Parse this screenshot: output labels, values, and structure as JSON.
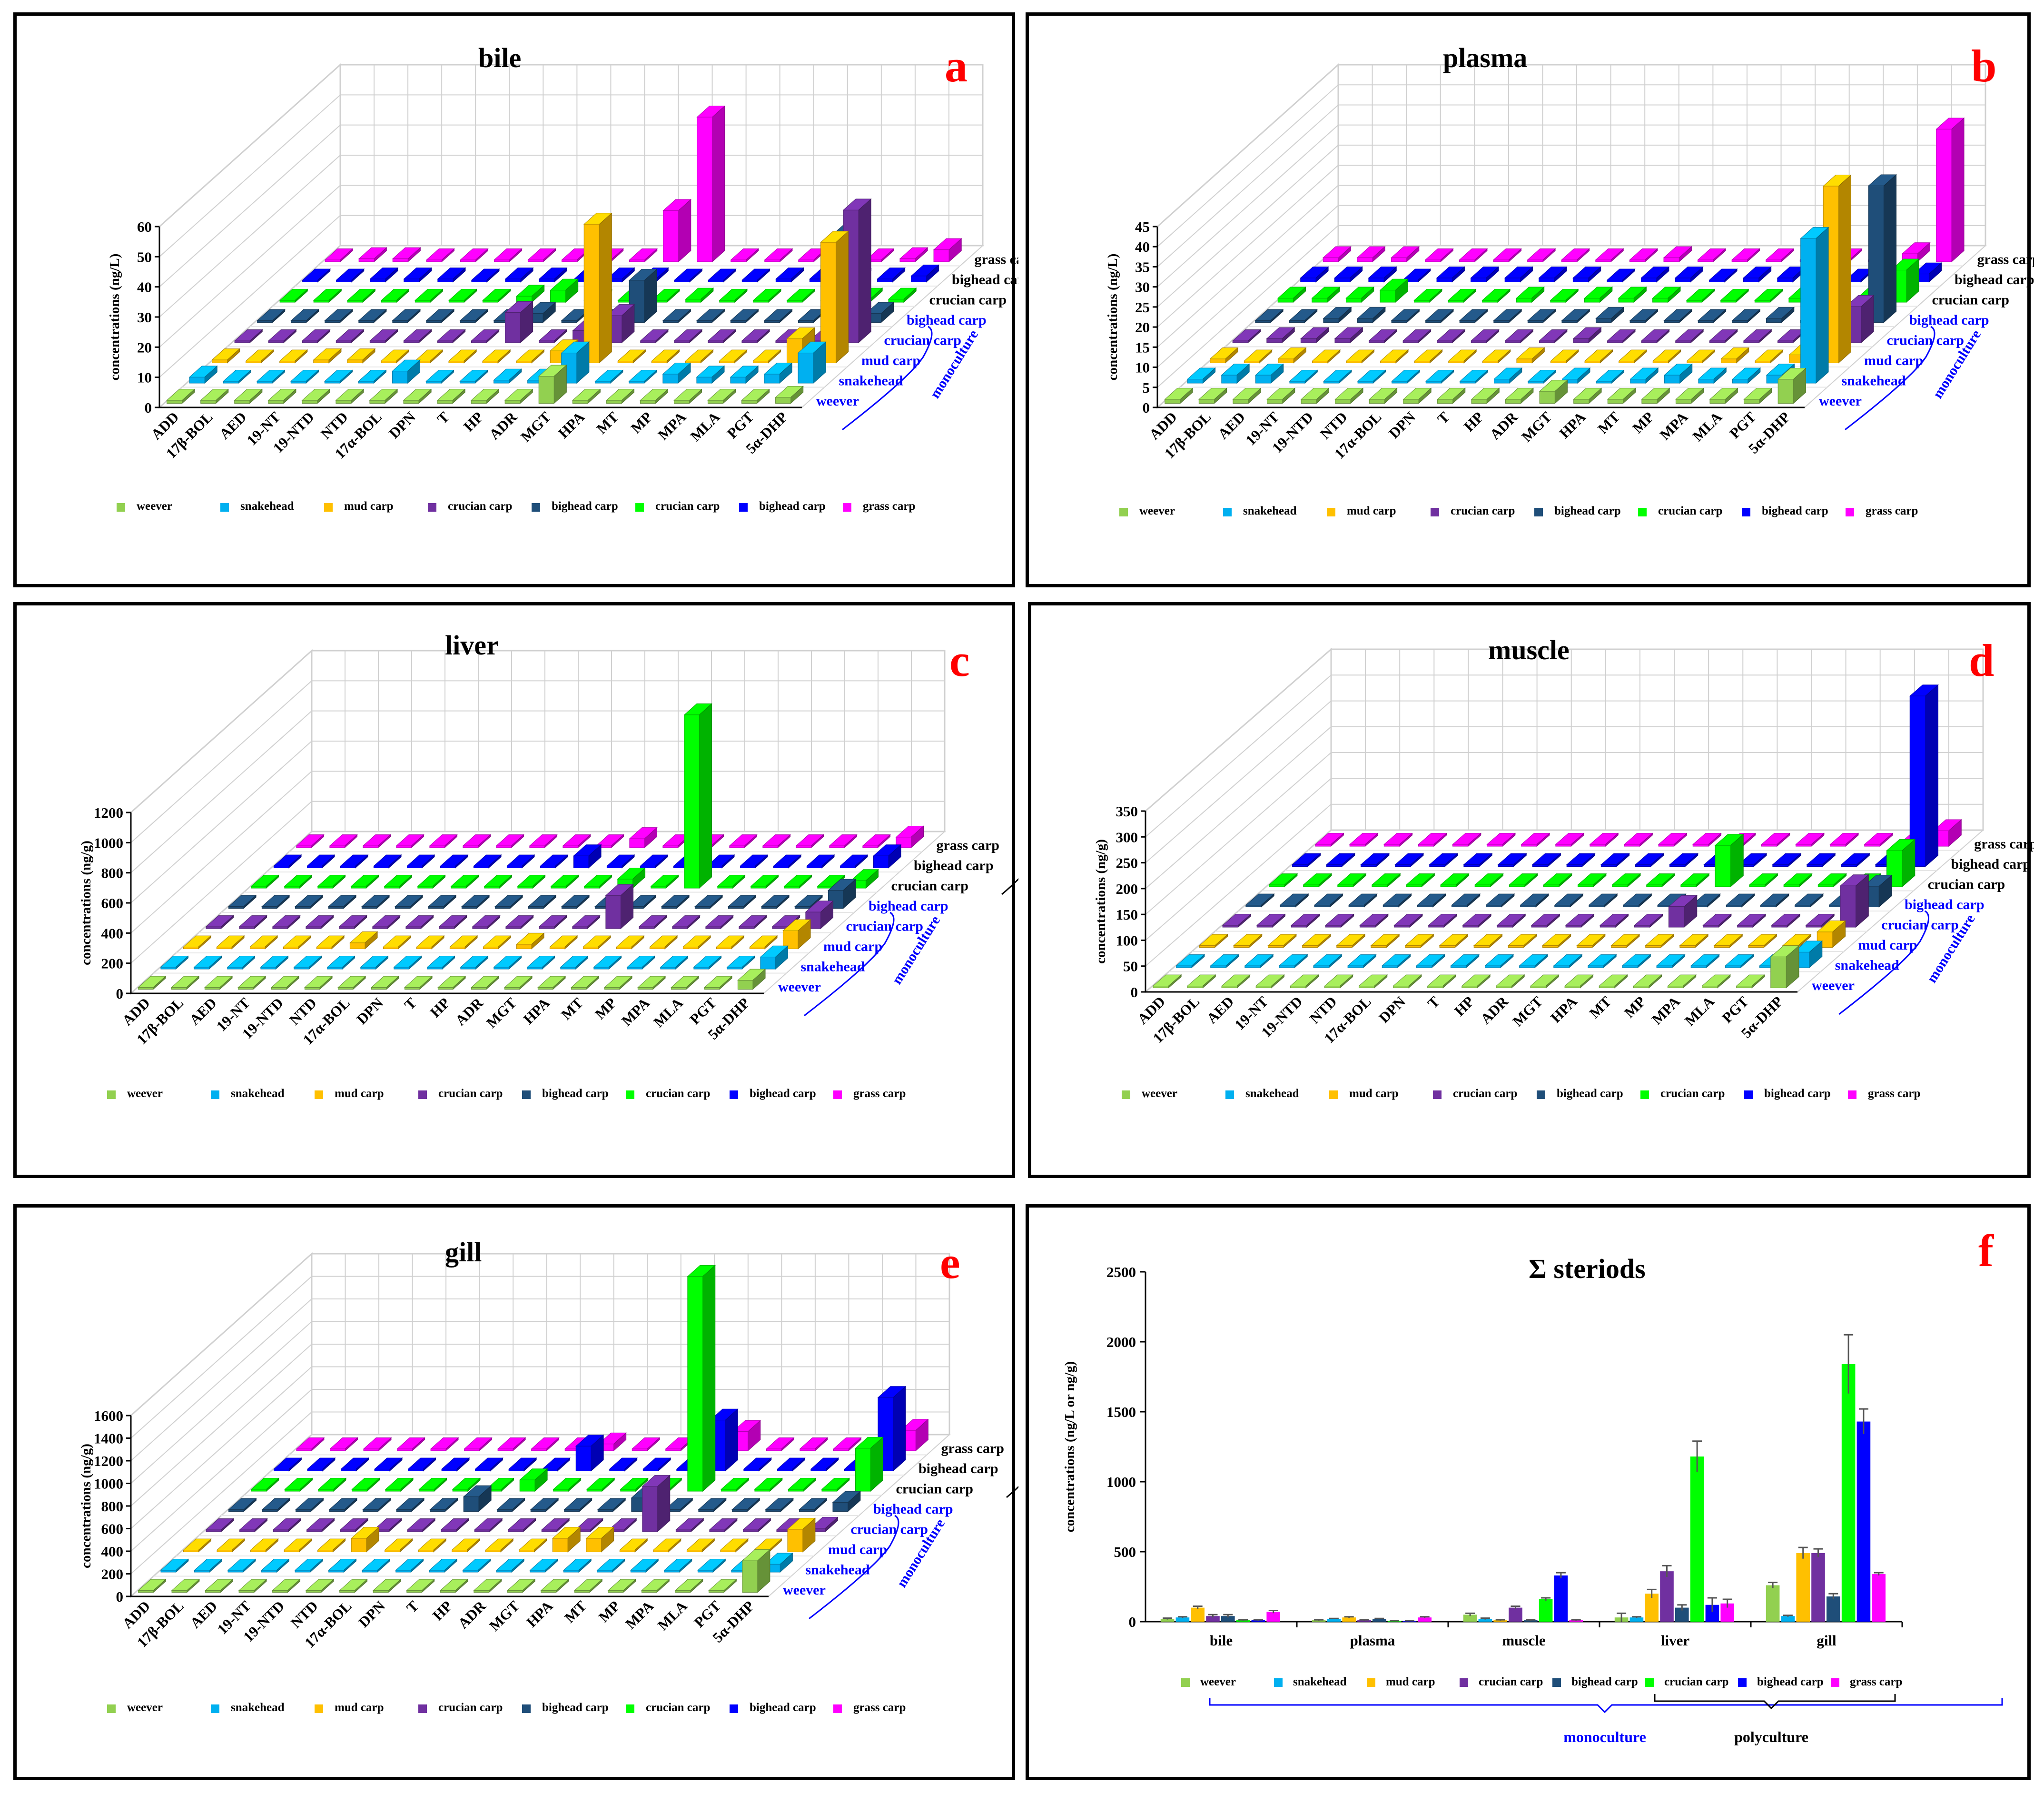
{
  "categories": [
    "ADD",
    "17β-BOL",
    "AED",
    "19-NT",
    "19-NTD",
    "NTD",
    "17α-BOL",
    "DPN",
    "T",
    "HP",
    "ADR",
    "MGT",
    "HPA",
    "MT",
    "MP",
    "MPA",
    "MLA",
    "PGT",
    "5α-DHP"
  ],
  "series": [
    {
      "name": "weever",
      "color": "#92d050"
    },
    {
      "name": "snakehead",
      "color": "#00b0f0"
    },
    {
      "name": "mud carp",
      "color": "#ffc000"
    },
    {
      "name": "crucian carp",
      "color": "#7030a0"
    },
    {
      "name": "bighead carp",
      "color": "#1f4e79"
    },
    {
      "name": "crucian carp",
      "color": "#00ff00"
    },
    {
      "name": "bighead carp",
      "color": "#0000ff"
    },
    {
      "name": "grass carp",
      "color": "#ff00ff"
    }
  ],
  "depth_labels": [
    "weever",
    "snakehead",
    "mud carp",
    "crucian carp",
    "bighead carp",
    "crucian carp",
    "bighead carp",
    "grass carp"
  ],
  "group_labels": {
    "monoculture": "monoculture",
    "polyculture": "polyculture"
  },
  "colors": {
    "letter": "#ff0000",
    "blue_text": "#0000ff",
    "frame": "#000000",
    "grid": "#d0d0d0"
  },
  "chart_data": [
    {
      "type": "bar3d",
      "letter": "a",
      "title": "bile",
      "ylabel": "concentrations (ng/L)",
      "ylim": [
        0,
        60
      ],
      "yticks": [
        0,
        10,
        20,
        30,
        40,
        50,
        60
      ],
      "values": [
        [
          1,
          1,
          1,
          1,
          1,
          1,
          1,
          1,
          1,
          1,
          1,
          9,
          1,
          1,
          1,
          1,
          1,
          1,
          2
        ],
        [
          2,
          0,
          0,
          0,
          0,
          0,
          4,
          0,
          0,
          1,
          1,
          10,
          0,
          0,
          3,
          2,
          2,
          3,
          10
        ],
        [
          1,
          0,
          0,
          1,
          1,
          0,
          0,
          0,
          0,
          0,
          4,
          46,
          0,
          0,
          0,
          0,
          0,
          8,
          40
        ],
        [
          0,
          0,
          0,
          0,
          0,
          0,
          0,
          0,
          10,
          0,
          4,
          9,
          0,
          0,
          0,
          0,
          0,
          0,
          44
        ],
        [
          0,
          0,
          0,
          0,
          0,
          0,
          0,
          0,
          3,
          0,
          0,
          14,
          0,
          0,
          0,
          0,
          0,
          29,
          3
        ],
        [
          0,
          0,
          0,
          0,
          0,
          0,
          0,
          2,
          4,
          0,
          0,
          0,
          1,
          0,
          0,
          0,
          0,
          1,
          1
        ],
        [
          0,
          0,
          1,
          1,
          1,
          0,
          1,
          1,
          0,
          1,
          1,
          0,
          0,
          0,
          1,
          1,
          0,
          1,
          2
        ],
        [
          0,
          1,
          1,
          0,
          0,
          0,
          0,
          0,
          0,
          0,
          17,
          48,
          0,
          0,
          0,
          0,
          0,
          1,
          4
        ]
      ]
    },
    {
      "type": "bar3d",
      "letter": "b",
      "title": "plasma",
      "ylabel": "concentrations (ng/L)",
      "ylim": [
        0,
        45
      ],
      "yticks": [
        0,
        5,
        10,
        15,
        20,
        25,
        30,
        35,
        40,
        45
      ],
      "values": [
        [
          1,
          1,
          1,
          1,
          1,
          1,
          1,
          1,
          1,
          1,
          1,
          3,
          1,
          1,
          1,
          1,
          1,
          1,
          6
        ],
        [
          1,
          2,
          2,
          0,
          0,
          0,
          0,
          0,
          0,
          1,
          0,
          1,
          0,
          1,
          2,
          1,
          1,
          2,
          36
        ],
        [
          1,
          0,
          1,
          0,
          0,
          0,
          0,
          0,
          0,
          1,
          0,
          0,
          0,
          0,
          0,
          1,
          0,
          2,
          44
        ],
        [
          0,
          1,
          1,
          1,
          0,
          0,
          0,
          0,
          0,
          0,
          1,
          0,
          0,
          0,
          0,
          0,
          0,
          1,
          9
        ],
        [
          0,
          0,
          1,
          1,
          0,
          0,
          0,
          0,
          0,
          0,
          1,
          0,
          0,
          0,
          0,
          1,
          0,
          0,
          34
        ],
        [
          1,
          1,
          1,
          3,
          0,
          0,
          0,
          1,
          0,
          1,
          1,
          1,
          0,
          0,
          0,
          1,
          1,
          1,
          8
        ],
        [
          1,
          1,
          1,
          0,
          1,
          1,
          1,
          1,
          1,
          0,
          1,
          1,
          0,
          1,
          1,
          1,
          0,
          1,
          2
        ],
        [
          1,
          1,
          1,
          0,
          0,
          0,
          0,
          0,
          0,
          0,
          1,
          0,
          0,
          0,
          0,
          0,
          0,
          2,
          33
        ]
      ]
    },
    {
      "type": "bar3d",
      "letter": "c",
      "title": "liver",
      "ylabel": "concentrations (ng/g)",
      "ylim": [
        0,
        1200
      ],
      "yticks": [
        0,
        200,
        400,
        600,
        800,
        1000,
        1200
      ],
      "values": [
        [
          5,
          0,
          5,
          5,
          5,
          0,
          0,
          5,
          0,
          0,
          0,
          5,
          5,
          0,
          5,
          5,
          5,
          5,
          60
        ],
        [
          0,
          5,
          5,
          0,
          0,
          0,
          0,
          0,
          5,
          0,
          0,
          0,
          0,
          0,
          0,
          0,
          5,
          5,
          80
        ],
        [
          5,
          5,
          0,
          0,
          5,
          40,
          0,
          0,
          5,
          0,
          30,
          0,
          0,
          0,
          5,
          0,
          5,
          5,
          120
        ],
        [
          0,
          5,
          0,
          0,
          5,
          0,
          5,
          5,
          0,
          0,
          0,
          0,
          220,
          0,
          0,
          5,
          0,
          0,
          110
        ],
        [
          0,
          5,
          0,
          0,
          5,
          0,
          0,
          5,
          0,
          0,
          0,
          0,
          0,
          0,
          0,
          0,
          0,
          5,
          120
        ],
        [
          0,
          5,
          0,
          0,
          0,
          0,
          0,
          0,
          5,
          0,
          5,
          60,
          0,
          1150,
          5,
          0,
          0,
          5,
          50
        ],
        [
          0,
          5,
          5,
          0,
          0,
          0,
          5,
          0,
          0,
          80,
          0,
          0,
          0,
          0,
          0,
          5,
          0,
          5,
          80
        ],
        [
          0,
          5,
          5,
          0,
          0,
          0,
          0,
          5,
          0,
          5,
          60,
          0,
          0,
          5,
          5,
          0,
          5,
          0,
          70
        ]
      ]
    },
    {
      "type": "bar3d",
      "letter": "d",
      "title": "muscle",
      "ylabel": "concentrations (ng/g)",
      "ylim": [
        0,
        350
      ],
      "yticks": [
        0,
        50,
        100,
        150,
        200,
        250,
        300,
        350
      ],
      "values": [
        [
          2,
          2,
          2,
          2,
          2,
          2,
          2,
          2,
          2,
          2,
          2,
          2,
          2,
          2,
          2,
          2,
          2,
          2,
          60
        ],
        [
          2,
          0,
          2,
          0,
          0,
          0,
          0,
          0,
          0,
          2,
          0,
          0,
          0,
          0,
          2,
          2,
          2,
          2,
          30
        ],
        [
          0,
          2,
          2,
          0,
          0,
          0,
          0,
          0,
          0,
          0,
          0,
          0,
          0,
          0,
          0,
          2,
          0,
          2,
          30
        ],
        [
          0,
          2,
          0,
          2,
          0,
          0,
          0,
          2,
          0,
          0,
          2,
          0,
          0,
          40,
          2,
          2,
          0,
          2,
          80
        ],
        [
          2,
          0,
          0,
          0,
          0,
          0,
          0,
          0,
          0,
          0,
          0,
          0,
          0,
          0,
          0,
          0,
          0,
          2,
          40
        ],
        [
          2,
          2,
          2,
          2,
          2,
          2,
          2,
          2,
          2,
          2,
          2,
          2,
          0,
          80,
          2,
          2,
          2,
          2,
          70
        ],
        [
          2,
          2,
          2,
          2,
          2,
          2,
          2,
          2,
          2,
          2,
          2,
          2,
          2,
          0,
          2,
          2,
          2,
          2,
          330
        ],
        [
          2,
          0,
          0,
          0,
          0,
          0,
          0,
          0,
          0,
          0,
          0,
          0,
          0,
          0,
          0,
          0,
          0,
          2,
          30
        ]
      ]
    },
    {
      "type": "bar3d",
      "letter": "e",
      "title": "gill",
      "ylabel": "concentrations (ng/g)",
      "ylim": [
        0,
        1600
      ],
      "yticks": [
        0,
        200,
        400,
        600,
        800,
        1000,
        1200,
        1400,
        1600
      ],
      "values": [
        [
          5,
          5,
          0,
          5,
          5,
          5,
          0,
          0,
          0,
          0,
          5,
          0,
          5,
          0,
          5,
          0,
          5,
          5,
          280
        ],
        [
          0,
          5,
          5,
          5,
          5,
          5,
          0,
          0,
          0,
          0,
          0,
          0,
          5,
          0,
          0,
          0,
          0,
          5,
          70
        ],
        [
          5,
          0,
          0,
          0,
          5,
          120,
          0,
          0,
          0,
          0,
          0,
          120,
          120,
          0,
          0,
          5,
          0,
          0,
          200
        ],
        [
          0,
          5,
          0,
          0,
          0,
          0,
          5,
          0,
          0,
          0,
          5,
          0,
          5,
          400,
          5,
          0,
          5,
          5,
          30
        ],
        [
          0,
          5,
          5,
          0,
          5,
          0,
          5,
          130,
          0,
          0,
          0,
          5,
          120,
          5,
          5,
          0,
          5,
          0,
          80
        ],
        [
          5,
          5,
          0,
          0,
          5,
          0,
          5,
          5,
          100,
          0,
          0,
          5,
          5,
          1900,
          5,
          0,
          0,
          5,
          380
        ],
        [
          5,
          5,
          5,
          5,
          5,
          5,
          5,
          0,
          0,
          220,
          0,
          0,
          0,
          450,
          5,
          5,
          5,
          5,
          650
        ],
        [
          5,
          0,
          0,
          0,
          5,
          5,
          0,
          5,
          5,
          60,
          0,
          0,
          0,
          170,
          0,
          0,
          5,
          5,
          180
        ]
      ]
    },
    {
      "type": "bar",
      "letter": "f",
      "title": "Σ steriods",
      "ylabel": "concentrations (ng/L or ng/g)",
      "ylim": [
        0,
        2500
      ],
      "yticks": [
        0,
        500,
        1000,
        1500,
        2000,
        2500
      ],
      "groups": [
        "bile",
        "plasma",
        "muscle",
        "liver",
        "gill"
      ],
      "values": [
        [
          20,
          10,
          50,
          30,
          260
        ],
        [
          30,
          20,
          20,
          30,
          40
        ],
        [
          100,
          30,
          10,
          200,
          490
        ],
        [
          40,
          10,
          100,
          360,
          490
        ],
        [
          40,
          20,
          10,
          100,
          180
        ],
        [
          10,
          5,
          160,
          1180,
          1840
        ],
        [
          10,
          5,
          330,
          120,
          1430
        ],
        [
          70,
          30,
          10,
          130,
          340
        ]
      ],
      "errors": [
        [
          5,
          3,
          10,
          30,
          20
        ],
        [
          5,
          3,
          5,
          5,
          5
        ],
        [
          10,
          5,
          3,
          30,
          40
        ],
        [
          10,
          3,
          10,
          40,
          30
        ],
        [
          10,
          3,
          3,
          20,
          20
        ],
        [
          3,
          2,
          10,
          110,
          210
        ],
        [
          3,
          2,
          20,
          50,
          90
        ],
        [
          10,
          5,
          3,
          30,
          10
        ]
      ]
    }
  ]
}
